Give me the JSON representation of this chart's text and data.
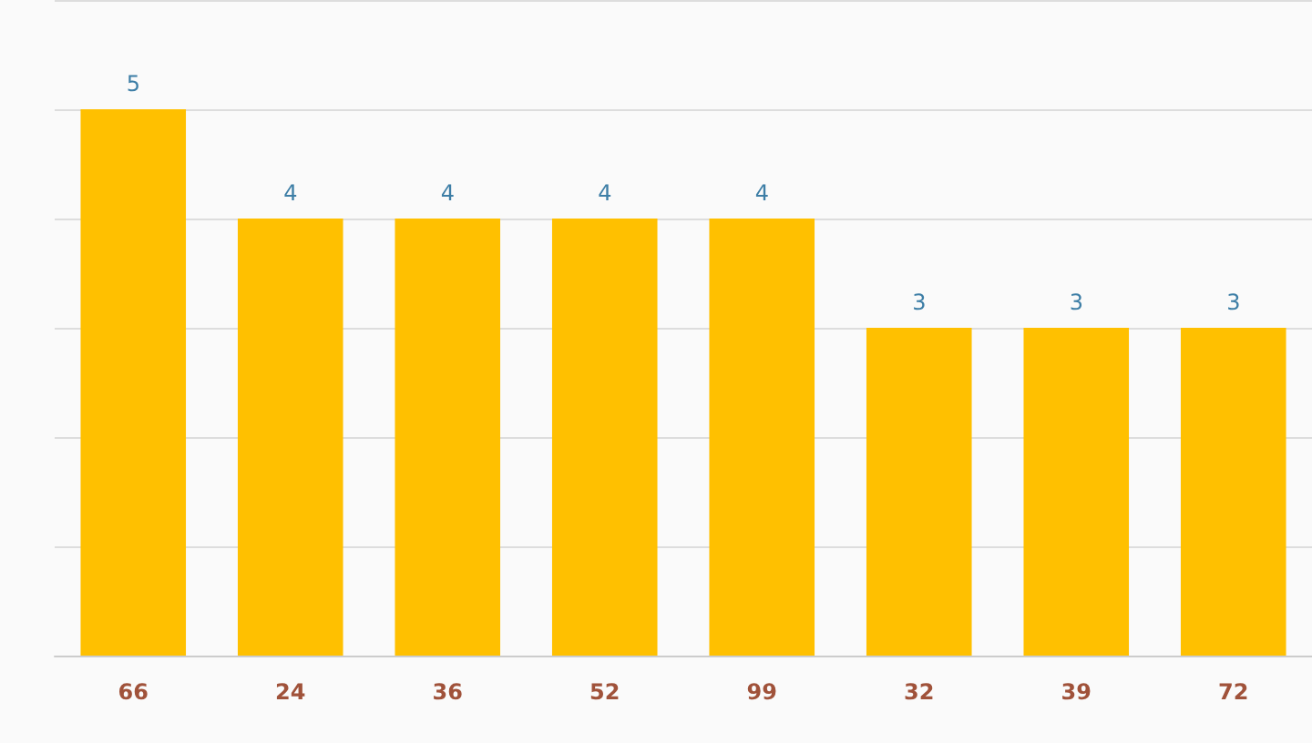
{
  "chart_data": {
    "type": "bar",
    "categories": [
      "66",
      "24",
      "36",
      "52",
      "99",
      "32",
      "39",
      "72"
    ],
    "values": [
      5,
      4,
      4,
      4,
      4,
      3,
      3,
      3
    ],
    "color": "#ffc000",
    "data_labels": true,
    "grid": "y",
    "tick_labels": "x",
    "ylim": [
      0,
      6
    ],
    "yticks": [
      {
        "value": 0,
        "label": null
      },
      {
        "value": 1,
        "label": null
      },
      {
        "value": 2,
        "label": null
      },
      {
        "value": 3,
        "label": null
      },
      {
        "value": 4,
        "label": null
      },
      {
        "value": 5,
        "label": null
      },
      {
        "value": 6,
        "label": null
      }
    ]
  }
}
